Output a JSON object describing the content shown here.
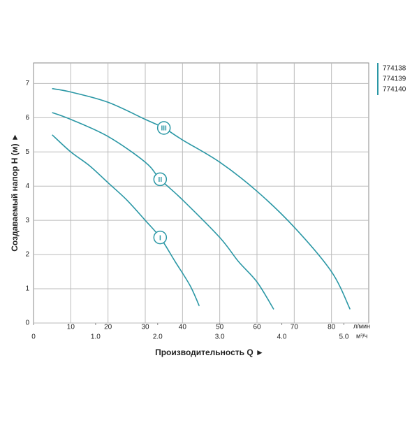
{
  "chart_data": {
    "type": "line",
    "ylabel": "Создаваемый напор H (м) ►",
    "xlabel": "Производительность Q ►",
    "x_unit": "л/мин",
    "x2_unit": "м³/ч",
    "xlim": [
      0,
      90
    ],
    "xticks": [
      10,
      20,
      30,
      40,
      50,
      60,
      70,
      80
    ],
    "x2lim": [
      0,
      5.4
    ],
    "x2ticks": [
      0,
      {
        "value": 1,
        "label": "1.0"
      },
      {
        "value": 2,
        "label": "2.0"
      },
      {
        "value": 3,
        "label": "3.0"
      },
      {
        "value": 4,
        "label": "4.0"
      },
      {
        "value": 5,
        "label": "5.0"
      }
    ],
    "ylim": [
      0,
      7.6
    ],
    "yticks": [
      0,
      1,
      2,
      3,
      4,
      5,
      6,
      7
    ],
    "grid": true,
    "series": [
      {
        "name": "774138",
        "curve_label": "I",
        "color": "#2a97a5",
        "x": [
          5,
          10,
          15,
          20,
          25,
          30,
          34,
          38,
          42,
          44.5
        ],
        "values": [
          5.5,
          5.0,
          4.6,
          4.1,
          3.6,
          3.0,
          2.5,
          1.8,
          1.1,
          0.5
        ]
      },
      {
        "name": "774139",
        "curve_label": "II",
        "color": "#2a97a5",
        "x": [
          5,
          10,
          20,
          30,
          34,
          40,
          50,
          55,
          60,
          64.5
        ],
        "values": [
          6.15,
          5.95,
          5.45,
          4.7,
          4.2,
          3.6,
          2.5,
          1.8,
          1.2,
          0.4
        ]
      },
      {
        "name": "774140",
        "curve_label": "III",
        "color": "#2a97a5",
        "x": [
          5,
          10,
          20,
          30,
          35,
          40,
          50,
          60,
          70,
          80,
          85
        ],
        "values": [
          6.85,
          6.75,
          6.45,
          5.95,
          5.7,
          5.35,
          4.7,
          3.85,
          2.8,
          1.5,
          0.4
        ]
      }
    ]
  }
}
